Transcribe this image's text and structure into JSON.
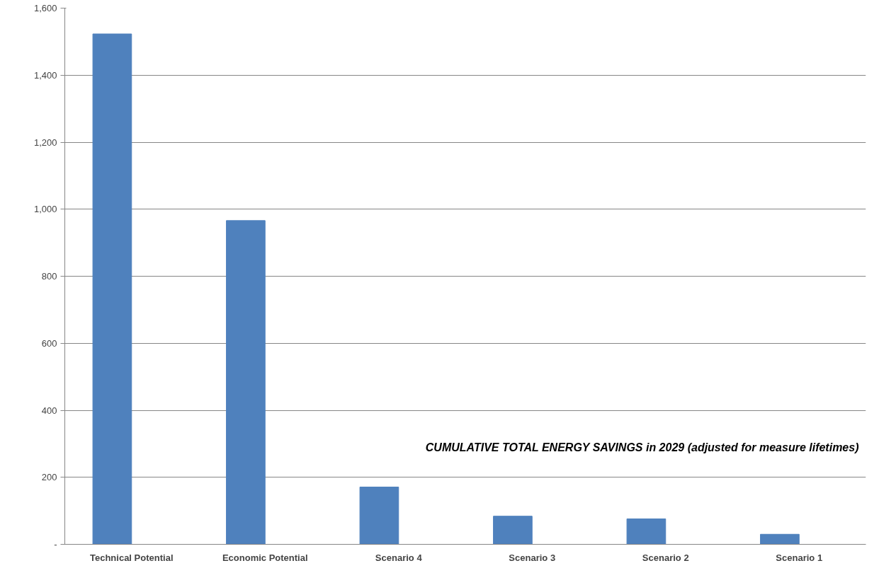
{
  "chart_data": {
    "type": "bar",
    "categories": [
      "Technical Potential",
      "Economic Potential",
      "Scenario 4",
      "Scenario 3",
      "Scenario 2",
      "Scenario 1"
    ],
    "series": [
      {
        "color": "#4f81bd",
        "values": [
          1523,
          966,
          171,
          84,
          76,
          30
        ]
      }
    ],
    "ylim": [
      0,
      1600
    ],
    "yticks": [
      {
        "value": 0,
        "label": "-"
      },
      200,
      400,
      600,
      800,
      {
        "value": 1000,
        "label": "1,000"
      },
      {
        "value": 1200,
        "label": "1,200"
      },
      {
        "value": 1400,
        "label": "1,400"
      },
      {
        "value": 1600,
        "label": "1,600"
      }
    ],
    "grid": "y",
    "annotations": [
      "CUMULATIVE TOTAL ENERGY SAVINGS in 2029 (adjusted for measure lifetimes)"
    ]
  }
}
